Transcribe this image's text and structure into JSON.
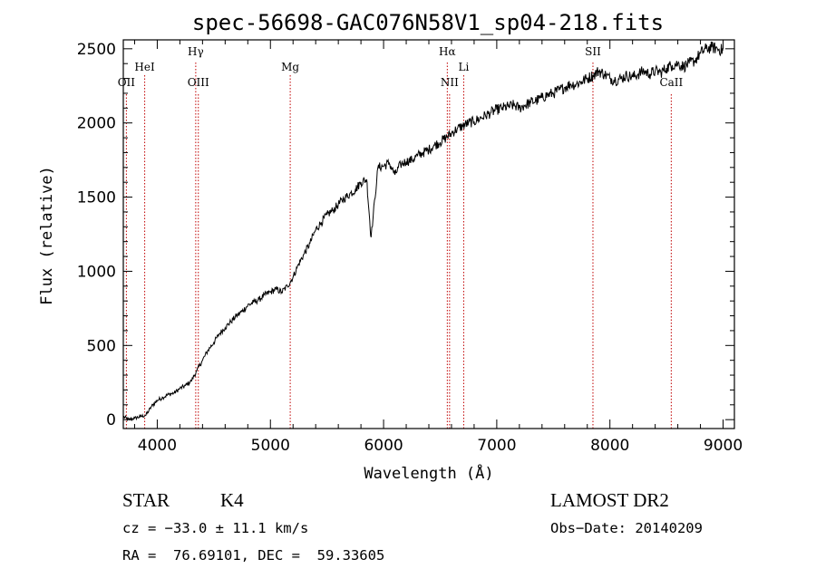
{
  "chart_data": {
    "type": "line",
    "title": "spec-56698-GAC076N58V1_sp04-218.fits",
    "xlabel": "Wavelength (Å)",
    "ylabel": "Flux (relative)",
    "xlim": [
      3700,
      9100
    ],
    "ylim": [
      -60,
      2560
    ],
    "xticks": [
      4000,
      5000,
      6000,
      7000,
      8000,
      9000
    ],
    "yticks": [
      0,
      500,
      1000,
      1500,
      2000,
      2500
    ],
    "grid": false,
    "series": [
      {
        "x": [
          3700,
          3750,
          3800,
          3850,
          3900,
          3950,
          4000,
          4050,
          4100,
          4150,
          4200,
          4250,
          4300,
          4350,
          4400,
          4450,
          4500,
          4550,
          4600,
          4650,
          4700,
          4750,
          4800,
          4850,
          4900,
          4950,
          5000,
          5050,
          5100,
          5150,
          5200,
          5250,
          5300,
          5350,
          5400,
          5450,
          5500,
          5550,
          5600,
          5650,
          5700,
          5750,
          5800,
          5850,
          5890,
          5950,
          6000,
          6050,
          6100,
          6150,
          6200,
          6250,
          6300,
          6350,
          6400,
          6450,
          6500,
          6550,
          6600,
          6650,
          6700,
          6750,
          6800,
          6850,
          6900,
          6950,
          7000,
          7050,
          7100,
          7150,
          7200,
          7250,
          7300,
          7350,
          7400,
          7450,
          7500,
          7550,
          7600,
          7650,
          7700,
          7750,
          7800,
          7850,
          7900,
          7950,
          8000,
          8050,
          8100,
          8150,
          8200,
          8250,
          8300,
          8350,
          8400,
          8450,
          8500,
          8550,
          8600,
          8650,
          8700,
          8750,
          8800,
          8850,
          8900,
          8950,
          9000
        ],
        "y": [
          20,
          0,
          10,
          20,
          30,
          90,
          130,
          150,
          170,
          180,
          210,
          230,
          260,
          330,
          400,
          470,
          520,
          580,
          620,
          660,
          700,
          730,
          770,
          790,
          810,
          840,
          860,
          880,
          860,
          900,
          960,
          1050,
          1120,
          1190,
          1280,
          1330,
          1380,
          1410,
          1450,
          1490,
          1520,
          1550,
          1600,
          1620,
          1230,
          1700,
          1710,
          1730,
          1650,
          1720,
          1740,
          1750,
          1780,
          1800,
          1820,
          1850,
          1870,
          1900,
          1930,
          1960,
          1980,
          2000,
          2010,
          2030,
          2050,
          2070,
          2090,
          2100,
          2110,
          2120,
          2100,
          2120,
          2140,
          2150,
          2170,
          2190,
          2200,
          2220,
          2240,
          2260,
          2260,
          2280,
          2300,
          2320,
          2350,
          2330,
          2300,
          2290,
          2300,
          2320,
          2310,
          2330,
          2350,
          2330,
          2350,
          2340,
          2370,
          2390,
          2400,
          2380,
          2400,
          2420,
          2470,
          2500,
          2510,
          2500,
          2490
        ]
      }
    ],
    "lines": [
      {
        "name": "OII",
        "x": 3727,
        "row": 2
      },
      {
        "name": "HeI",
        "x": 3889,
        "row": 1
      },
      {
        "name": "Hγ",
        "x": 4340,
        "row": 0
      },
      {
        "name": "OIII",
        "x": 4363,
        "row": 2
      },
      {
        "name": "Mg",
        "x": 5175,
        "row": 1
      },
      {
        "name": "Hα",
        "x": 6563,
        "row": 0
      },
      {
        "name": "NII",
        "x": 6583,
        "row": 2
      },
      {
        "name": "Li",
        "x": 6708,
        "row": 1
      },
      {
        "name": "SII",
        "x": 7850,
        "row": 0
      },
      {
        "name": "CaII",
        "x": 8542,
        "row": 2
      }
    ],
    "line_color": "#c00000"
  },
  "info": {
    "object_type": "STAR",
    "subclass": "K4",
    "survey": "LAMOST DR2",
    "cz": "cz = −33.0 ± 11.1 km/s",
    "obs_date": "Obs−Date: 20140209",
    "coords": "RA =  76.69101, DEC =  59.33605"
  }
}
